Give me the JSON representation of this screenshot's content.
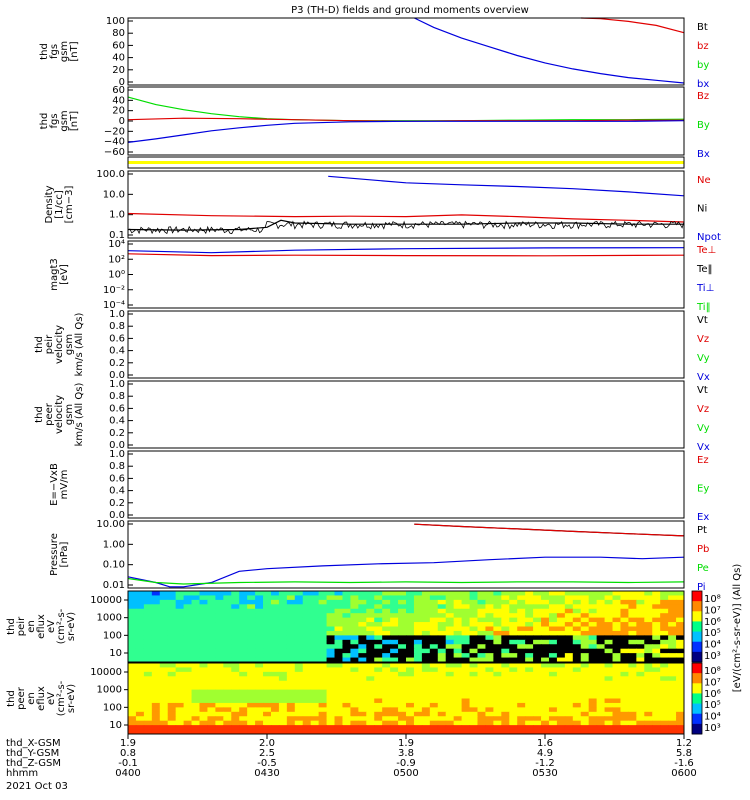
{
  "title": "P3 (TH-D) fields and ground moments overview",
  "colors": {
    "red": "#e00000",
    "green": "#00dd00",
    "blue": "#0000dd",
    "black": "#000000",
    "yellow": "#ffff00"
  },
  "chart_data": [
    {
      "type": "line",
      "ylabel": [
        "thd",
        "fgs",
        "gsm",
        "[nT]"
      ],
      "ylim": [
        0,
        100
      ],
      "ticks": [
        "100",
        "80",
        "60",
        "40",
        "20",
        "0"
      ],
      "legend": [
        {
          "name": "Bt",
          "color": "black"
        },
        {
          "name": "bz",
          "color": "red"
        },
        {
          "name": "by",
          "color": "green"
        },
        {
          "name": "bx",
          "color": "blue"
        }
      ],
      "series": [
        {
          "name": "bx",
          "color": "blue",
          "points": [
            [
              1.03,
              100
            ],
            [
              1.1,
              86
            ],
            [
              1.2,
              70
            ],
            [
              1.3,
              57
            ],
            [
              1.4,
              44
            ],
            [
              1.5,
              33
            ],
            [
              1.6,
              24
            ],
            [
              1.7,
              17
            ],
            [
              1.8,
              11
            ],
            [
              1.9,
              7
            ],
            [
              2.0,
              3
            ]
          ]
        },
        {
          "name": "bz",
          "color": "red",
          "points": [
            [
              1.63,
              100
            ],
            [
              1.7,
              99
            ],
            [
              1.8,
              95
            ],
            [
              1.9,
              89
            ],
            [
              2.0,
              78
            ]
          ]
        }
      ]
    },
    {
      "type": "line",
      "ylabel": [
        "thd",
        "fgs",
        "gsm",
        "[nT]"
      ],
      "ylim": [
        -70,
        65
      ],
      "ticks": [
        "60",
        "40",
        "20",
        "0",
        "−20",
        "−40",
        "−60"
      ],
      "legend": [
        {
          "name": "Bz",
          "color": "red"
        },
        {
          "name": "By",
          "color": "green"
        },
        {
          "name": "Bx",
          "color": "blue"
        }
      ],
      "series": [
        {
          "name": "By",
          "color": "green",
          "points": [
            [
              0.0,
              45
            ],
            [
              0.1,
              30
            ],
            [
              0.2,
              20
            ],
            [
              0.3,
              12
            ],
            [
              0.4,
              6
            ],
            [
              0.5,
              2
            ],
            [
              0.6,
              0
            ],
            [
              0.8,
              -2
            ],
            [
              1.0,
              -2
            ],
            [
              1.2,
              -2
            ],
            [
              1.4,
              -1
            ],
            [
              1.6,
              0
            ],
            [
              1.8,
              0
            ],
            [
              2.0,
              1
            ]
          ]
        },
        {
          "name": "Bz",
          "color": "red",
          "points": [
            [
              0.0,
              0
            ],
            [
              0.2,
              3
            ],
            [
              0.4,
              2
            ],
            [
              0.6,
              0
            ],
            [
              0.8,
              -2
            ],
            [
              1.0,
              -3
            ],
            [
              1.2,
              -2
            ],
            [
              1.4,
              -2
            ],
            [
              1.6,
              -2
            ],
            [
              1.8,
              -1
            ],
            [
              2.0,
              -1
            ]
          ]
        },
        {
          "name": "Bx",
          "color": "blue",
          "points": [
            [
              0.0,
              -45
            ],
            [
              0.1,
              -38
            ],
            [
              0.2,
              -30
            ],
            [
              0.3,
              -22
            ],
            [
              0.4,
              -16
            ],
            [
              0.5,
              -11
            ],
            [
              0.6,
              -7
            ],
            [
              0.8,
              -4
            ],
            [
              1.0,
              -3
            ],
            [
              1.2,
              -3
            ],
            [
              1.4,
              -3
            ],
            [
              1.6,
              -3
            ],
            [
              1.8,
              -3
            ],
            [
              2.0,
              -2
            ]
          ]
        }
      ]
    },
    {
      "type": "line",
      "ylabel": [
        "Density",
        "[1/cc]",
        "[cm−3]"
      ],
      "scale": "log",
      "ylim": [
        0.05,
        300
      ],
      "ticks": [
        "100.0",
        "10.0",
        "1.0",
        "0.1"
      ],
      "legend": [
        {
          "name": "Ne",
          "color": "red"
        },
        {
          "name": "Ni",
          "color": "black"
        },
        {
          "name": "Npot",
          "color": "blue"
        }
      ],
      "series": [
        {
          "name": "Npot",
          "color": "blue",
          "points": [
            [
              0.72,
              150
            ],
            [
              1.0,
              65
            ],
            [
              1.2,
              50
            ],
            [
              1.4,
              40
            ],
            [
              1.6,
              30
            ],
            [
              1.8,
              20
            ],
            [
              2.0,
              12
            ]
          ]
        },
        {
          "name": "Ne",
          "color": "red",
          "points": [
            [
              0.0,
              1.2
            ],
            [
              0.3,
              0.9
            ],
            [
              0.6,
              0.8
            ],
            [
              0.8,
              0.85
            ],
            [
              1.0,
              0.8
            ],
            [
              1.2,
              1.0
            ],
            [
              1.4,
              0.8
            ],
            [
              1.6,
              0.6
            ],
            [
              1.8,
              0.5
            ],
            [
              2.0,
              0.4
            ]
          ]
        },
        {
          "name": "Ni",
          "color": "black",
          "points": [
            [
              0.0,
              0.15
            ],
            [
              0.2,
              0.14
            ],
            [
              0.4,
              0.15
            ],
            [
              0.5,
              0.2
            ],
            [
              0.55,
              0.5
            ],
            [
              0.6,
              0.35
            ],
            [
              0.8,
              0.3
            ],
            [
              1.0,
              0.3
            ],
            [
              1.2,
              0.3
            ],
            [
              1.4,
              0.35
            ],
            [
              1.6,
              0.35
            ],
            [
              1.8,
              0.3
            ],
            [
              2.0,
              0.3
            ]
          ]
        }
      ]
    },
    {
      "type": "line",
      "ylabel": [
        "magt3",
        "[eV]"
      ],
      "scale": "log",
      "ylim": [
        0.0001,
        10000
      ],
      "ticks": [
        "10⁴",
        "10²",
        "10⁰",
        "10⁻²",
        "10⁻⁴"
      ],
      "legend": [
        {
          "name": "Te⊥",
          "color": "red"
        },
        {
          "name": "Te‖",
          "color": "black"
        },
        {
          "name": "Ti⊥",
          "color": "blue"
        },
        {
          "name": "Ti‖",
          "color": "green"
        }
      ],
      "series": [
        {
          "name": "Ti",
          "color": "blue",
          "points": [
            [
              0.0,
              700
            ],
            [
              0.3,
              400
            ],
            [
              0.6,
              800
            ],
            [
              1.0,
              1200
            ],
            [
              1.5,
              1500
            ],
            [
              2.0,
              1600
            ]
          ]
        },
        {
          "name": "Te",
          "color": "red",
          "points": [
            [
              0.0,
              300
            ],
            [
              0.3,
              180
            ],
            [
              0.6,
              200
            ],
            [
              1.0,
              180
            ],
            [
              1.5,
              170
            ],
            [
              2.0,
              200
            ]
          ]
        }
      ]
    },
    {
      "type": "line",
      "ylabel": [
        "thd",
        "peir",
        "velocity",
        "gsm",
        "km/s (All Qs)"
      ],
      "ylim": [
        0,
        1
      ],
      "ticks": [
        "1.0",
        "0.8",
        "0.6",
        "0.4",
        "0.2",
        "0.0"
      ],
      "legend": [
        {
          "name": "Vt",
          "color": "black"
        },
        {
          "name": "Vz",
          "color": "red"
        },
        {
          "name": "Vy",
          "color": "green"
        },
        {
          "name": "Vx",
          "color": "blue"
        }
      ],
      "series": []
    },
    {
      "type": "line",
      "ylabel": [
        "thd",
        "peer",
        "velocity",
        "gsm",
        "km/s (All Qs)"
      ],
      "ylim": [
        0,
        1
      ],
      "ticks": [
        "1.0",
        "0.8",
        "0.6",
        "0.4",
        "0.2",
        "0.0"
      ],
      "legend": [
        {
          "name": "Vt",
          "color": "black"
        },
        {
          "name": "Vz",
          "color": "red"
        },
        {
          "name": "Vy",
          "color": "green"
        },
        {
          "name": "Vx",
          "color": "blue"
        }
      ],
      "series": []
    },
    {
      "type": "line",
      "ylabel": [
        "E=−VxB",
        "mV/m"
      ],
      "ylim": [
        0,
        1
      ],
      "ticks": [
        "1.0",
        "0.8",
        "0.6",
        "0.4",
        "0.2",
        "0.0"
      ],
      "legend": [
        {
          "name": "Ez",
          "color": "red"
        },
        {
          "name": "Ey",
          "color": "green"
        },
        {
          "name": "Ex",
          "color": "blue"
        }
      ],
      "series": []
    },
    {
      "type": "line",
      "ylabel": [
        "Pressure",
        "[nPa]"
      ],
      "scale": "log",
      "ylim": [
        0.006,
        30
      ],
      "ticks": [
        "10.00",
        "1.00",
        "0.10",
        "0.01"
      ],
      "legend": [
        {
          "name": "Pt",
          "color": "black"
        },
        {
          "name": "Pb",
          "color": "red"
        },
        {
          "name": "Pe",
          "color": "green"
        },
        {
          "name": "Pi",
          "color": "blue"
        }
      ],
      "series": [
        {
          "name": "Pt",
          "color": "black",
          "points": [
            [
              1.03,
              20
            ],
            [
              1.2,
              15
            ],
            [
              1.4,
              11
            ],
            [
              1.6,
              8
            ],
            [
              1.8,
              6
            ],
            [
              2.0,
              4.5
            ]
          ]
        },
        {
          "name": "Pb",
          "color": "red",
          "points": [
            [
              1.03,
              20
            ],
            [
              1.2,
              15
            ],
            [
              1.4,
              11
            ],
            [
              1.6,
              8
            ],
            [
              1.8,
              6
            ],
            [
              2.0,
              4.5
            ]
          ]
        },
        {
          "name": "Pi",
          "color": "blue",
          "points": [
            [
              0.0,
              0.025
            ],
            [
              0.1,
              0.012
            ],
            [
              0.15,
              0.007
            ],
            [
              0.2,
              0.007
            ],
            [
              0.3,
              0.012
            ],
            [
              0.4,
              0.05
            ],
            [
              0.5,
              0.07
            ],
            [
              0.7,
              0.1
            ],
            [
              0.9,
              0.13
            ],
            [
              1.1,
              0.15
            ],
            [
              1.3,
              0.22
            ],
            [
              1.5,
              0.3
            ],
            [
              1.7,
              0.3
            ],
            [
              1.85,
              0.25
            ],
            [
              2.0,
              0.3
            ]
          ]
        },
        {
          "name": "Pe",
          "color": "green",
          "points": [
            [
              0.0,
              0.02
            ],
            [
              0.1,
              0.012
            ],
            [
              0.2,
              0.01
            ],
            [
              0.4,
              0.012
            ],
            [
              0.6,
              0.013
            ],
            [
              0.8,
              0.012
            ],
            [
              1.0,
              0.013
            ],
            [
              1.2,
              0.012
            ],
            [
              1.4,
              0.013
            ],
            [
              1.6,
              0.013
            ],
            [
              1.8,
              0.012
            ],
            [
              2.0,
              0.013
            ]
          ]
        }
      ]
    },
    {
      "type": "heatmap",
      "ylabel": [
        "thd",
        "peir",
        "en",
        "eflux",
        "eV",
        "(cm²-s-",
        "sr-eV)"
      ],
      "scale": "log",
      "ticks": [
        "10000",
        "1000",
        "100",
        "10"
      ],
      "colorbar_ticks": [
        "10⁸",
        "10⁷",
        "10⁶",
        "10⁵",
        "10⁴",
        "10³"
      ]
    },
    {
      "type": "heatmap",
      "ylabel": [
        "thd",
        "peer",
        "en",
        "eflux",
        "eV",
        "(cm²-s-",
        "sr-eV)"
      ],
      "scale": "log",
      "ticks": [
        "10000",
        "1000",
        "100",
        "10"
      ],
      "colorbar_ticks": [
        "10⁸",
        "10⁷",
        "10⁶",
        "10⁵",
        "10⁴",
        "10³"
      ]
    }
  ],
  "colorbar_label": "[eV/(cm²-s-sr-eV)] (All Qs)",
  "xaxis": {
    "rows": [
      {
        "name": "thd_X-GSM",
        "values": [
          "1.9",
          "2.0",
          "1.9",
          "1.6",
          "1.2"
        ]
      },
      {
        "name": "thd_Y-GSM",
        "values": [
          "0.8",
          "2.5",
          "3.8",
          "4.9",
          "5.8"
        ]
      },
      {
        "name": "thd_Z-GSM",
        "values": [
          "-0.1",
          "-0.5",
          "-0.9",
          "-1.2",
          "-1.6"
        ]
      },
      {
        "name": "hhmm",
        "values": [
          "0400",
          "0430",
          "0500",
          "0530",
          "0600"
        ]
      }
    ],
    "date": "2021 Oct 03"
  }
}
